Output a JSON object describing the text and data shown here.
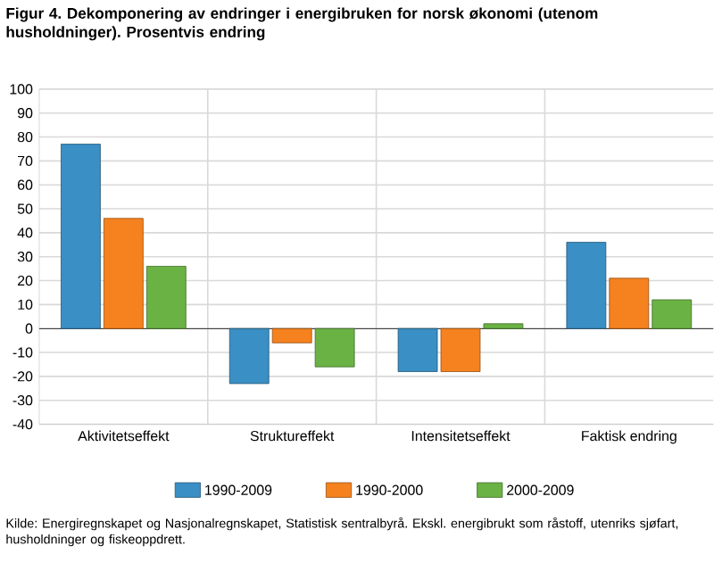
{
  "chart_data": {
    "type": "bar",
    "title": "Figur 4. Dekomponering av endringer i energibruken for norsk økonomi (utenom husholdninger). Prosentvis endring",
    "categories": [
      "Aktivitetseffekt",
      "Struktureffekt",
      "Intensitetseffekt",
      "Faktisk endring"
    ],
    "series": [
      {
        "name": "1990-2009",
        "color": "#3a8fc4",
        "values": [
          77,
          -23,
          -18,
          36
        ]
      },
      {
        "name": "1990-2000",
        "color": "#f5821f",
        "values": [
          46,
          -6,
          -18,
          21
        ]
      },
      {
        "name": "2000-2009",
        "color": "#6ab244",
        "values": [
          26,
          -16,
          2,
          12
        ]
      }
    ],
    "ylim": [
      -40,
      100
    ],
    "yticks": [
      -40,
      -30,
      -20,
      -10,
      0,
      10,
      20,
      30,
      40,
      50,
      60,
      70,
      80,
      90,
      100
    ],
    "grid": true,
    "legend": "bottom",
    "annotations": [
      "Kilde: Energiregnskapet og Nasjonalregnskapet, Statistisk sentralbyrå.  Ekskl. energibrukt som råstoff, utenriks sjøfart, husholdninger og fiskeoppdrett."
    ]
  }
}
